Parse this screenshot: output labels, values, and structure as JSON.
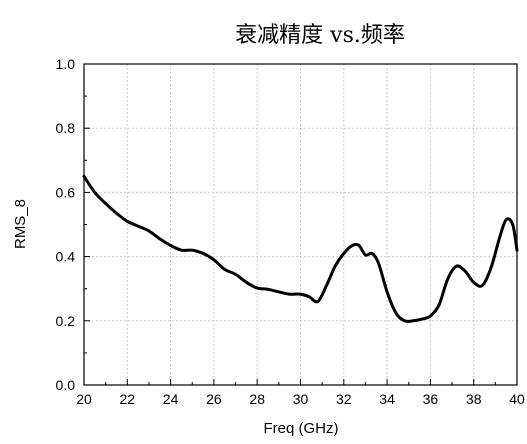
{
  "chart_data": {
    "type": "line",
    "title": "衰减精度 vs.频率",
    "xlabel": "Freq (GHz)",
    "ylabel": "RMS_8",
    "xlim": [
      20,
      40
    ],
    "ylim": [
      0.0,
      1.0
    ],
    "x_ticks": [
      20,
      22,
      24,
      26,
      28,
      30,
      32,
      34,
      36,
      38,
      40
    ],
    "y_ticks": [
      0.0,
      0.2,
      0.4,
      0.6,
      0.8,
      1.0
    ],
    "x_tick_labels": [
      "20",
      "22",
      "24",
      "26",
      "28",
      "30",
      "32",
      "34",
      "36",
      "38",
      "40"
    ],
    "y_tick_labels": [
      "0.0",
      "0.2",
      "0.4",
      "0.6",
      "0.8",
      "1.0"
    ],
    "grid": true,
    "line_color": "#000000",
    "series": [
      {
        "x": [
          20.0,
          20.5,
          21.0,
          21.5,
          22.0,
          22.5,
          23.0,
          23.5,
          24.0,
          24.5,
          25.0,
          25.5,
          26.0,
          26.5,
          27.0,
          27.5,
          28.0,
          28.5,
          29.0,
          29.5,
          30.0,
          30.4,
          30.8,
          31.2,
          31.6,
          32.0,
          32.4,
          32.7,
          33.0,
          33.3,
          33.6,
          34.0,
          34.4,
          34.8,
          35.2,
          35.6,
          36.0,
          36.4,
          36.8,
          37.2,
          37.6,
          38.0,
          38.4,
          38.8,
          39.2,
          39.5,
          39.8,
          40.0
        ],
        "y": [
          0.65,
          0.6,
          0.565,
          0.535,
          0.51,
          0.495,
          0.48,
          0.455,
          0.435,
          0.42,
          0.42,
          0.41,
          0.39,
          0.36,
          0.345,
          0.32,
          0.302,
          0.298,
          0.29,
          0.283,
          0.283,
          0.275,
          0.26,
          0.31,
          0.37,
          0.41,
          0.435,
          0.435,
          0.405,
          0.41,
          0.38,
          0.29,
          0.225,
          0.2,
          0.2,
          0.205,
          0.215,
          0.25,
          0.33,
          0.37,
          0.355,
          0.32,
          0.31,
          0.365,
          0.46,
          0.515,
          0.5,
          0.42
        ]
      }
    ]
  }
}
